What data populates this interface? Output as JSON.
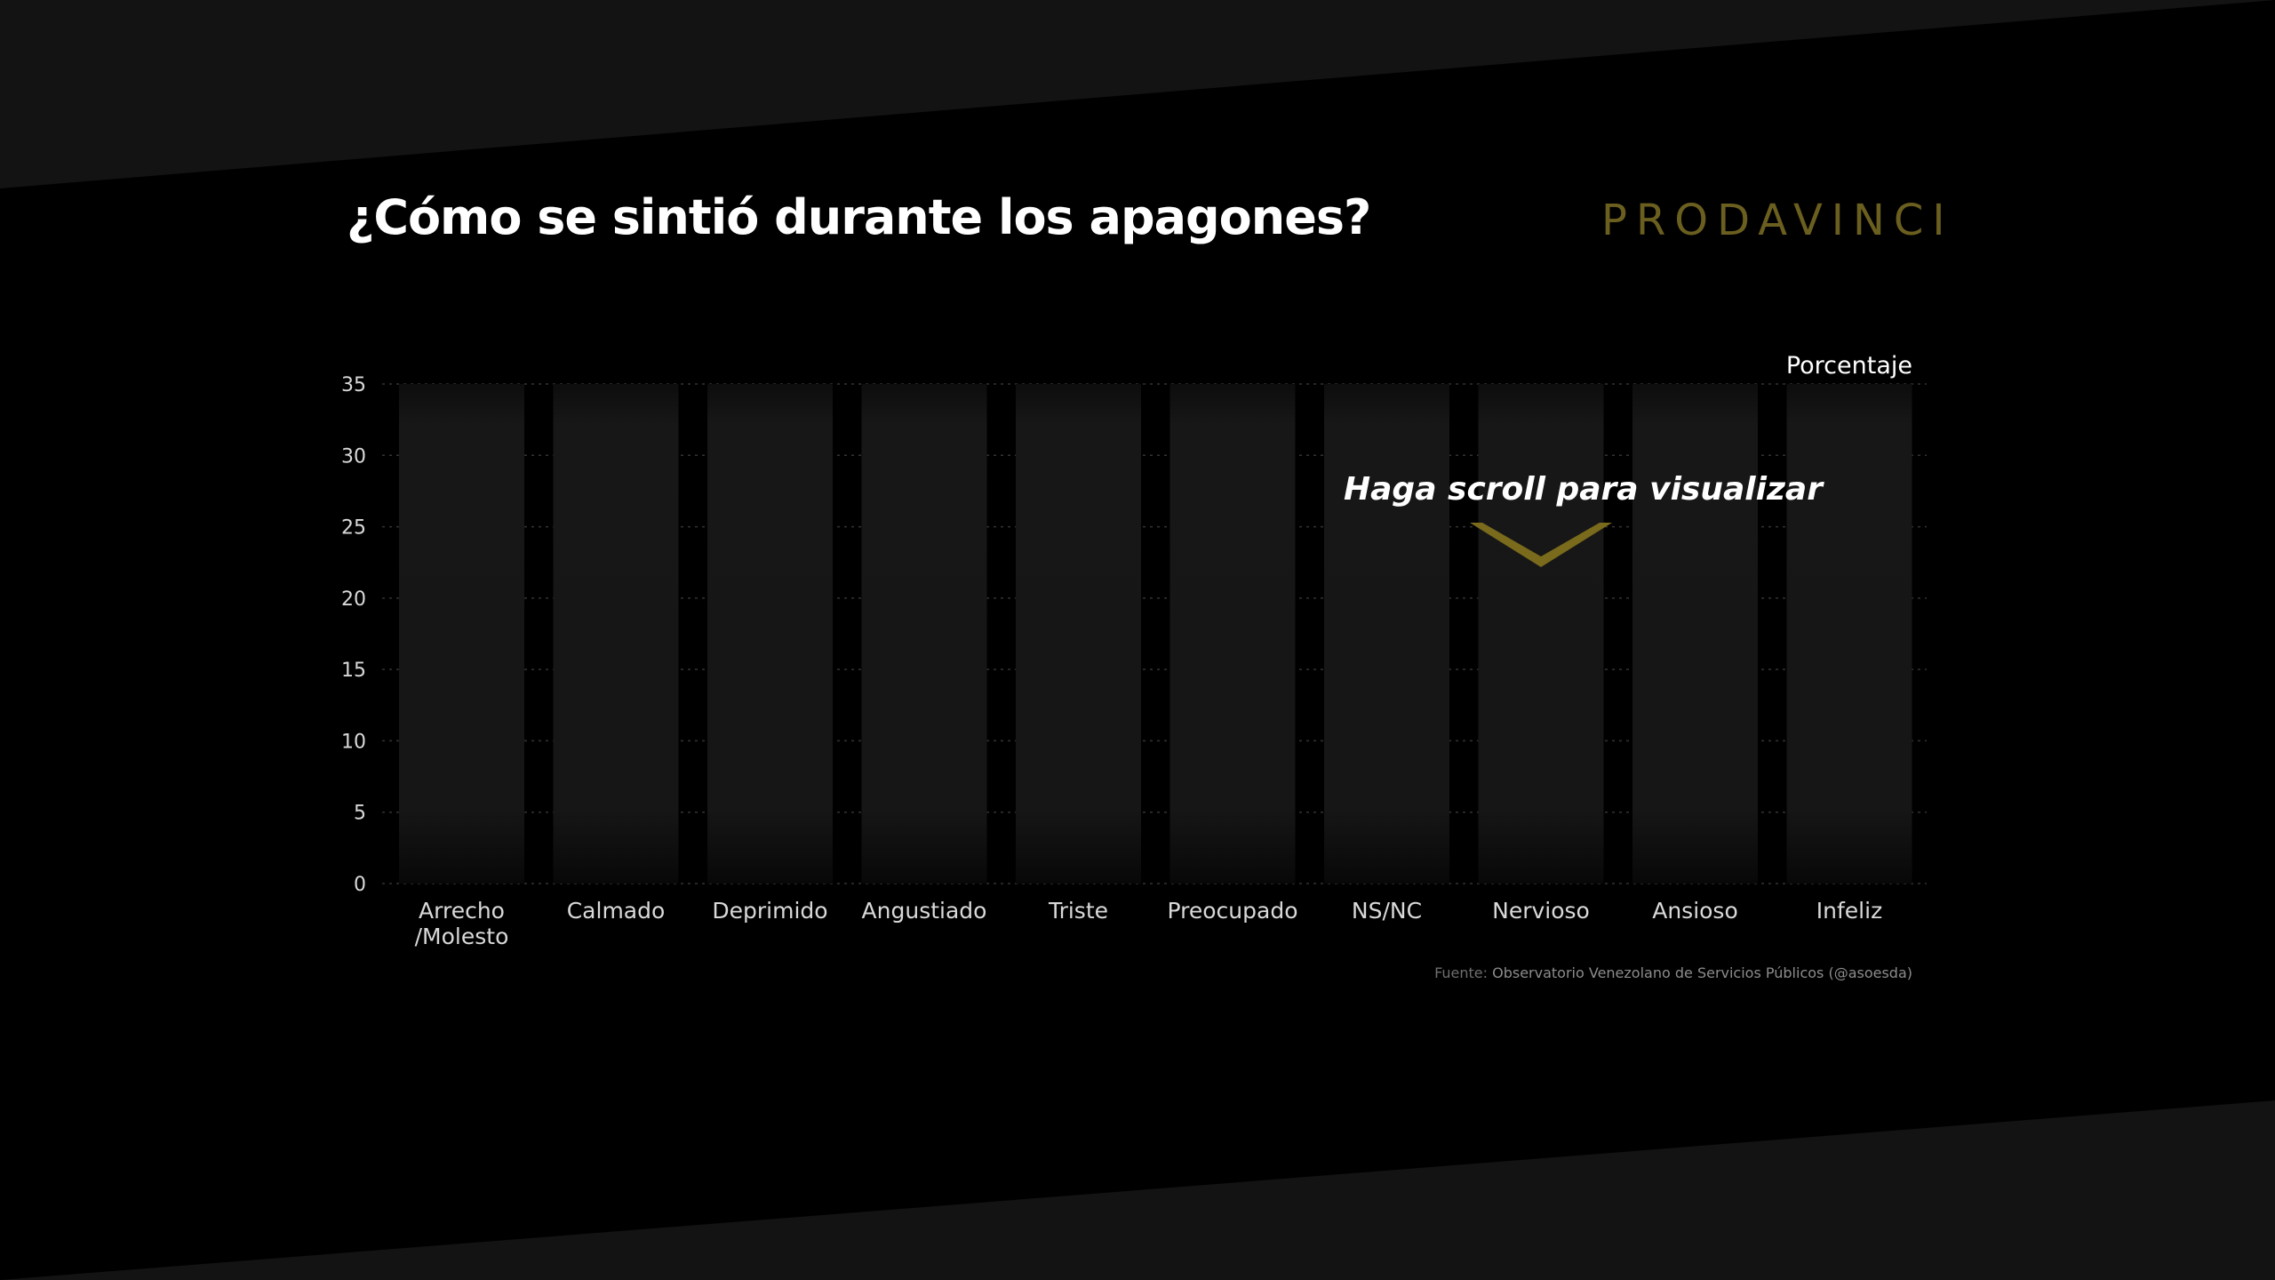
{
  "title": "¿Cómo se sintió durante los apagones?",
  "brand": "PRODAVINCI",
  "hint": "Haga scroll para visualizar",
  "source_prefix": "Fuente:",
  "source_name": "Observatorio Venezolano de Servicios Públicos (@asoesda)",
  "colors": {
    "background": "#000000",
    "band": "#131313",
    "bar": "#1a1a1a",
    "brand": "#6b5f1f",
    "arrow": "#7a6a1c",
    "tick_text": "#d9d9d9",
    "grid": "#333333"
  },
  "chart_data": {
    "type": "bar",
    "title": "¿Cómo se sintió durante los apagones?",
    "ylabel": "Porcentaje",
    "ylim": [
      0,
      35
    ],
    "yticks": [
      0,
      5,
      10,
      15,
      20,
      25,
      30,
      35
    ],
    "grid": true,
    "categories": [
      [
        "Arrecho",
        "/Molesto"
      ],
      [
        "Calmado"
      ],
      [
        "Deprimido"
      ],
      [
        "Angustiado"
      ],
      [
        "Triste"
      ],
      [
        "Preocupado"
      ],
      [
        "NS/NC"
      ],
      [
        "Nervioso"
      ],
      [
        "Ansioso"
      ],
      [
        "Infeliz"
      ]
    ],
    "values": [
      35,
      35,
      35,
      35,
      35,
      35,
      35,
      35,
      35,
      35
    ]
  }
}
